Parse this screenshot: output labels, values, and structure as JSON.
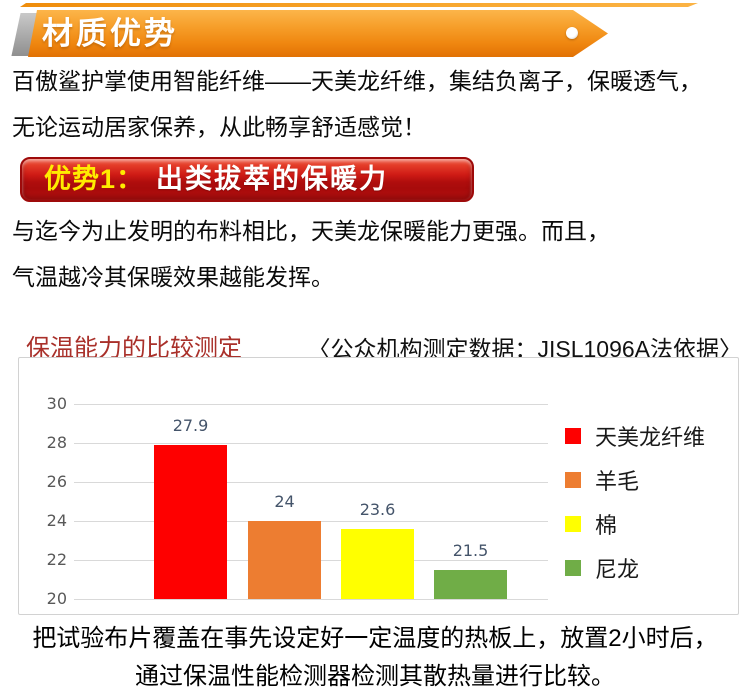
{
  "header_banner": {
    "title": "材质优势"
  },
  "intro": {
    "line1": "百傲鲨护掌使用智能纤维——天美龙纤维，集结负离子，保暖透气，",
    "line2": "无论运动居家保养，从此畅享舒适感觉！"
  },
  "advantage_banner": {
    "prefix": "优势1：",
    "label": "出类拔萃的保暖力"
  },
  "body": {
    "line1": "与迄今为止发明的布料相比，天美龙保暖能力更强。而且，",
    "line2": "气温越冷其保暖效果越能发挥。"
  },
  "chart_header": {
    "title": "保温能力的比较测定",
    "note": "〈公众机构测定数据：JISL1096A法依据〉"
  },
  "chart_data": {
    "type": "bar",
    "title": "保温能力的比较测定",
    "categories": [
      "天美龙纤维",
      "羊毛",
      "棉",
      "尼龙"
    ],
    "values": [
      27.9,
      24,
      23.6,
      21.5
    ],
    "value_labels": [
      "27.9",
      "24",
      "23.6",
      "21.5"
    ],
    "bar_colors": [
      "#fe0000",
      "#ed7d31",
      "#ffff00",
      "#70ad47"
    ],
    "ylim": [
      20,
      30
    ],
    "yticks": [
      20,
      22,
      24,
      26,
      28,
      30
    ],
    "grid": true,
    "legend_position": "right",
    "legend": [
      "天美龙纤维",
      "羊毛",
      "棉",
      "尼龙"
    ]
  },
  "footer": {
    "line1": "把试验布片覆盖在事先设定好一定温度的热板上，放置2小时后，",
    "line2": "通过保温性能检测器检测其散热量进行比较。"
  },
  "colors": {
    "ribbon_orange_top": "#fcb54a",
    "ribbon_orange_bottom": "#e17104",
    "advantage_red": "#c01111",
    "advantage_prefix_yellow": "#ffec00",
    "chart_title_red": "#a9302a",
    "grid_line": "#d9d9d9",
    "axis_label": "#595959",
    "value_label": "#44546a"
  }
}
